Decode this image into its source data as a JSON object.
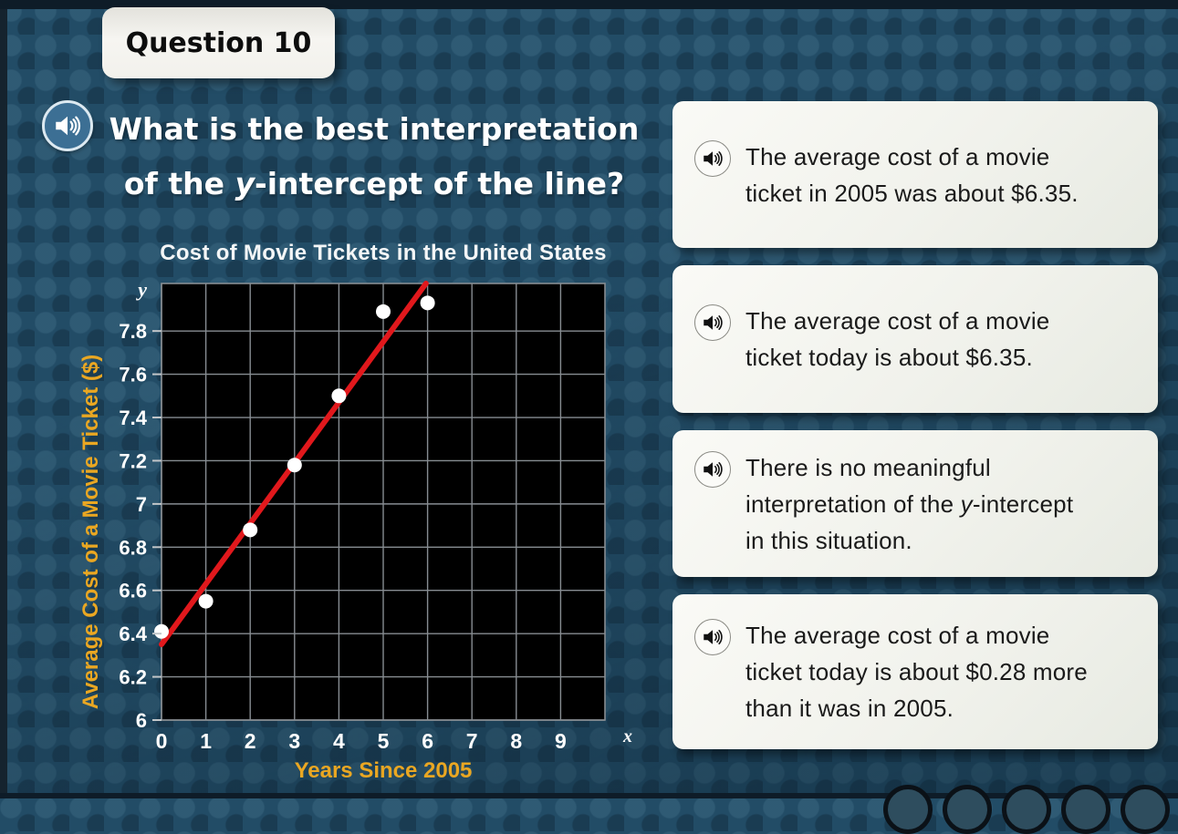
{
  "question_tab": {
    "label": "Question 10"
  },
  "question": {
    "lines": [
      [
        {
          "t": "What is the best interpretation"
        }
      ],
      [
        {
          "t": "of the "
        },
        {
          "t": "y",
          "i": true
        },
        {
          "t": "-intercept of the line?"
        }
      ]
    ]
  },
  "chart_data": {
    "type": "scatter",
    "title": "Cost of Movie Tickets in the United States",
    "xlabel": "Years Since 2005",
    "ylabel": "Average Cost of a Movie Ticket ($)",
    "axis_var_x": "x",
    "axis_var_y": "y",
    "x": [
      0,
      1,
      2,
      3,
      4,
      5,
      6
    ],
    "y": [
      6.41,
      6.55,
      6.88,
      7.18,
      7.5,
      7.89,
      7.93
    ],
    "trend_line": {
      "intercept": 6.35,
      "slope": 0.28,
      "color": "#e1181c"
    },
    "xlim": [
      0,
      10
    ],
    "ylim": [
      6.0,
      8.02
    ],
    "xticks": [
      "0",
      "1",
      "2",
      "3",
      "4",
      "5",
      "6",
      "7",
      "8",
      "9"
    ],
    "yticks": [
      "6",
      "6.2",
      "6.4",
      "6.6",
      "6.8",
      "7",
      "7.2",
      "7.4",
      "7.6",
      "7.8"
    ],
    "grid": true,
    "plot_bg": "#000000",
    "grid_color": "#878d92",
    "point_color": "#ffffff",
    "tick_label_color": "#ffffff",
    "axis_label_color": "#eaa722",
    "legend": "none"
  },
  "answers": [
    {
      "lines": [
        [
          {
            "t": "The average cost of a movie"
          }
        ],
        [
          {
            "t": "ticket in 2005 was about $6.35."
          }
        ]
      ]
    },
    {
      "lines": [
        [
          {
            "t": "The average cost of a movie"
          }
        ],
        [
          {
            "t": "ticket today is about $6.35."
          }
        ]
      ]
    },
    {
      "lines": [
        [
          {
            "t": "There is no meaningful"
          }
        ],
        [
          {
            "t": "interpretation of the "
          },
          {
            "t": "y",
            "i": true
          },
          {
            "t": "-intercept"
          }
        ],
        [
          {
            "t": "in this situation."
          }
        ]
      ]
    },
    {
      "lines": [
        [
          {
            "t": "The average cost of a movie"
          }
        ],
        [
          {
            "t": "ticket today is about $0.28 more"
          }
        ],
        [
          {
            "t": "than it was in 2005."
          }
        ]
      ]
    }
  ],
  "bottom_nav": {
    "dot_count": 5
  },
  "colors": {
    "background": "#224c66",
    "chrome_bar": "#0e1c28",
    "accent_gold": "#eaa722",
    "trend_red": "#e1181c",
    "audio_button_blue": "#3c6f94"
  }
}
